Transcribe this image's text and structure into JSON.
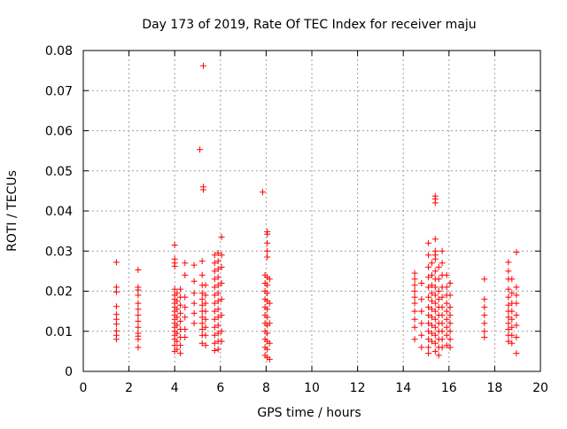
{
  "chart_data": {
    "type": "scatter",
    "title": "Day 173 of 2019, Rate Of TEC Index for receiver maju",
    "xlabel": "GPS time / hours",
    "ylabel": "ROTI / TECUs",
    "xlim": [
      0,
      20
    ],
    "ylim": [
      0,
      0.08
    ],
    "xticks": [
      0,
      2,
      4,
      6,
      8,
      10,
      12,
      14,
      16,
      18,
      20
    ],
    "xtick_labels": [
      "0",
      "2",
      "4",
      "6",
      "8",
      "10",
      "12",
      "14",
      "16",
      "18",
      "20"
    ],
    "yticks": [
      0,
      0.01,
      0.02,
      0.03,
      0.04,
      0.05,
      0.06,
      0.07,
      0.08
    ],
    "ytick_labels": [
      "0",
      "0.01",
      "0.02",
      "0.03",
      "0.04",
      "0.05",
      "0.06",
      "0.07",
      "0.08"
    ],
    "grid": true,
    "marker": "+",
    "color": "#ff0000",
    "series": [
      {
        "name": "ROTI",
        "points": [
          [
            1.45,
            0.0272
          ],
          [
            1.45,
            0.021
          ],
          [
            1.45,
            0.0198
          ],
          [
            1.45,
            0.0162
          ],
          [
            1.45,
            0.0142
          ],
          [
            1.45,
            0.013
          ],
          [
            1.45,
            0.0118
          ],
          [
            1.45,
            0.0101
          ],
          [
            1.45,
            0.009
          ],
          [
            1.45,
            0.008
          ],
          [
            2.4,
            0.0253
          ],
          [
            2.4,
            0.021
          ],
          [
            2.4,
            0.0203
          ],
          [
            2.4,
            0.019
          ],
          [
            2.4,
            0.017
          ],
          [
            2.4,
            0.0155
          ],
          [
            2.4,
            0.014
          ],
          [
            2.4,
            0.0125
          ],
          [
            2.4,
            0.011
          ],
          [
            2.4,
            0.0095
          ],
          [
            2.4,
            0.0088
          ],
          [
            2.4,
            0.008
          ],
          [
            2.4,
            0.006
          ],
          [
            4.0,
            0.0315
          ],
          [
            4.0,
            0.028
          ],
          [
            4.0,
            0.027
          ],
          [
            4.0,
            0.0262
          ],
          [
            4.0,
            0.0205
          ],
          [
            4.0,
            0.019
          ],
          [
            4.0,
            0.018
          ],
          [
            4.0,
            0.017
          ],
          [
            4.0,
            0.016
          ],
          [
            4.0,
            0.015
          ],
          [
            4.0,
            0.014
          ],
          [
            4.0,
            0.013
          ],
          [
            4.0,
            0.012
          ],
          [
            4.0,
            0.011
          ],
          [
            4.0,
            0.01
          ],
          [
            4.0,
            0.009
          ],
          [
            4.0,
            0.008
          ],
          [
            4.0,
            0.0065
          ],
          [
            4.0,
            0.005
          ],
          [
            4.1,
            0.0195
          ],
          [
            4.1,
            0.0175
          ],
          [
            4.1,
            0.0155
          ],
          [
            4.1,
            0.0135
          ],
          [
            4.1,
            0.0115
          ],
          [
            4.1,
            0.0095
          ],
          [
            4.1,
            0.0075
          ],
          [
            4.1,
            0.0055
          ],
          [
            4.25,
            0.0205
          ],
          [
            4.25,
            0.0185
          ],
          [
            4.25,
            0.0165
          ],
          [
            4.25,
            0.0145
          ],
          [
            4.25,
            0.0125
          ],
          [
            4.25,
            0.0105
          ],
          [
            4.25,
            0.0085
          ],
          [
            4.25,
            0.0065
          ],
          [
            4.25,
            0.0045
          ],
          [
            4.45,
            0.027
          ],
          [
            4.45,
            0.024
          ],
          [
            4.45,
            0.0185
          ],
          [
            4.45,
            0.016
          ],
          [
            4.45,
            0.0135
          ],
          [
            4.45,
            0.0105
          ],
          [
            4.45,
            0.0085
          ],
          [
            4.85,
            0.0265
          ],
          [
            4.85,
            0.0225
          ],
          [
            4.85,
            0.0195
          ],
          [
            4.85,
            0.017
          ],
          [
            4.85,
            0.0145
          ],
          [
            4.85,
            0.012
          ],
          [
            5.1,
            0.0553
          ],
          [
            5.25,
            0.0762
          ],
          [
            5.25,
            0.046
          ],
          [
            5.25,
            0.0453
          ],
          [
            5.2,
            0.0275
          ],
          [
            5.2,
            0.024
          ],
          [
            5.2,
            0.0215
          ],
          [
            5.2,
            0.0195
          ],
          [
            5.2,
            0.018
          ],
          [
            5.2,
            0.0165
          ],
          [
            5.2,
            0.015
          ],
          [
            5.2,
            0.0135
          ],
          [
            5.2,
            0.012
          ],
          [
            5.2,
            0.0105
          ],
          [
            5.2,
            0.009
          ],
          [
            5.2,
            0.007
          ],
          [
            5.35,
            0.0215
          ],
          [
            5.35,
            0.019
          ],
          [
            5.35,
            0.017
          ],
          [
            5.35,
            0.015
          ],
          [
            5.35,
            0.013
          ],
          [
            5.35,
            0.011
          ],
          [
            5.35,
            0.009
          ],
          [
            5.35,
            0.0065
          ],
          [
            5.75,
            0.029
          ],
          [
            5.75,
            0.027
          ],
          [
            5.75,
            0.025
          ],
          [
            5.75,
            0.023
          ],
          [
            5.75,
            0.021
          ],
          [
            5.75,
            0.019
          ],
          [
            5.75,
            0.017
          ],
          [
            5.75,
            0.015
          ],
          [
            5.75,
            0.013
          ],
          [
            5.75,
            0.011
          ],
          [
            5.75,
            0.009
          ],
          [
            5.75,
            0.007
          ],
          [
            5.75,
            0.0052
          ],
          [
            5.9,
            0.0295
          ],
          [
            5.9,
            0.0275
          ],
          [
            5.9,
            0.0255
          ],
          [
            5.9,
            0.0235
          ],
          [
            5.9,
            0.0215
          ],
          [
            5.9,
            0.0195
          ],
          [
            5.9,
            0.0175
          ],
          [
            5.9,
            0.0155
          ],
          [
            5.9,
            0.0135
          ],
          [
            5.9,
            0.0115
          ],
          [
            5.9,
            0.0095
          ],
          [
            5.9,
            0.0075
          ],
          [
            5.9,
            0.0055
          ],
          [
            6.05,
            0.0335
          ],
          [
            6.05,
            0.029
          ],
          [
            6.05,
            0.026
          ],
          [
            6.05,
            0.022
          ],
          [
            6.05,
            0.018
          ],
          [
            6.05,
            0.014
          ],
          [
            6.05,
            0.01
          ],
          [
            6.05,
            0.0075
          ],
          [
            7.85,
            0.0447
          ],
          [
            7.95,
            0.024
          ],
          [
            7.95,
            0.022
          ],
          [
            7.95,
            0.02
          ],
          [
            7.95,
            0.018
          ],
          [
            7.95,
            0.016
          ],
          [
            7.95,
            0.014
          ],
          [
            7.95,
            0.012
          ],
          [
            7.95,
            0.01
          ],
          [
            7.95,
            0.008
          ],
          [
            7.95,
            0.006
          ],
          [
            7.95,
            0.004
          ],
          [
            8.05,
            0.0348
          ],
          [
            8.05,
            0.0342
          ],
          [
            8.05,
            0.032
          ],
          [
            8.05,
            0.03
          ],
          [
            8.05,
            0.0285
          ],
          [
            8.05,
            0.0235
          ],
          [
            8.05,
            0.0215
          ],
          [
            8.05,
            0.0195
          ],
          [
            8.05,
            0.0175
          ],
          [
            8.05,
            0.0155
          ],
          [
            8.05,
            0.0135
          ],
          [
            8.05,
            0.0115
          ],
          [
            8.05,
            0.0095
          ],
          [
            8.05,
            0.0075
          ],
          [
            8.05,
            0.0055
          ],
          [
            8.05,
            0.0035
          ],
          [
            8.15,
            0.023
          ],
          [
            8.15,
            0.017
          ],
          [
            8.15,
            0.012
          ],
          [
            8.15,
            0.007
          ],
          [
            8.15,
            0.003
          ],
          [
            14.5,
            0.0245
          ],
          [
            14.5,
            0.023
          ],
          [
            14.5,
            0.0215
          ],
          [
            14.5,
            0.02
          ],
          [
            14.5,
            0.0185
          ],
          [
            14.5,
            0.017
          ],
          [
            14.5,
            0.015
          ],
          [
            14.5,
            0.013
          ],
          [
            14.5,
            0.011
          ],
          [
            14.5,
            0.008
          ],
          [
            14.8,
            0.022
          ],
          [
            14.8,
            0.018
          ],
          [
            14.8,
            0.015
          ],
          [
            14.8,
            0.012
          ],
          [
            14.8,
            0.009
          ],
          [
            14.8,
            0.006
          ],
          [
            15.1,
            0.032
          ],
          [
            15.1,
            0.029
          ],
          [
            15.1,
            0.026
          ],
          [
            15.1,
            0.0235
          ],
          [
            15.1,
            0.021
          ],
          [
            15.1,
            0.0185
          ],
          [
            15.1,
            0.016
          ],
          [
            15.1,
            0.014
          ],
          [
            15.1,
            0.012
          ],
          [
            15.1,
            0.01
          ],
          [
            15.1,
            0.008
          ],
          [
            15.1,
            0.006
          ],
          [
            15.1,
            0.0045
          ],
          [
            15.25,
            0.027
          ],
          [
            15.25,
            0.024
          ],
          [
            15.25,
            0.0215
          ],
          [
            15.25,
            0.0195
          ],
          [
            15.25,
            0.0175
          ],
          [
            15.25,
            0.0155
          ],
          [
            15.25,
            0.0135
          ],
          [
            15.25,
            0.0115
          ],
          [
            15.25,
            0.0095
          ],
          [
            15.25,
            0.0075
          ],
          [
            15.4,
            0.0437
          ],
          [
            15.4,
            0.043
          ],
          [
            15.4,
            0.042
          ],
          [
            15.4,
            0.033
          ],
          [
            15.4,
            0.03
          ],
          [
            15.4,
            0.029
          ],
          [
            15.4,
            0.028
          ],
          [
            15.4,
            0.025
          ],
          [
            15.4,
            0.023
          ],
          [
            15.4,
            0.021
          ],
          [
            15.4,
            0.019
          ],
          [
            15.4,
            0.017
          ],
          [
            15.4,
            0.015
          ],
          [
            15.4,
            0.013
          ],
          [
            15.4,
            0.011
          ],
          [
            15.4,
            0.009
          ],
          [
            15.4,
            0.007
          ],
          [
            15.4,
            0.005
          ],
          [
            15.55,
            0.026
          ],
          [
            15.55,
            0.023
          ],
          [
            15.55,
            0.02
          ],
          [
            15.55,
            0.018
          ],
          [
            15.55,
            0.016
          ],
          [
            15.55,
            0.014
          ],
          [
            15.55,
            0.012
          ],
          [
            15.55,
            0.01
          ],
          [
            15.55,
            0.008
          ],
          [
            15.55,
            0.006
          ],
          [
            15.55,
            0.004
          ],
          [
            15.7,
            0.03
          ],
          [
            15.7,
            0.027
          ],
          [
            15.7,
            0.024
          ],
          [
            15.7,
            0.021
          ],
          [
            15.7,
            0.0185
          ],
          [
            15.7,
            0.016
          ],
          [
            15.7,
            0.014
          ],
          [
            15.7,
            0.012
          ],
          [
            15.7,
            0.01
          ],
          [
            15.7,
            0.008
          ],
          [
            15.7,
            0.006
          ],
          [
            15.9,
            0.024
          ],
          [
            15.9,
            0.021
          ],
          [
            15.9,
            0.019
          ],
          [
            15.9,
            0.017
          ],
          [
            15.9,
            0.015
          ],
          [
            15.9,
            0.013
          ],
          [
            15.9,
            0.011
          ],
          [
            15.9,
            0.009
          ],
          [
            15.9,
            0.0065
          ],
          [
            16.05,
            0.022
          ],
          [
            16.05,
            0.019
          ],
          [
            16.05,
            0.016
          ],
          [
            16.05,
            0.014
          ],
          [
            16.05,
            0.012
          ],
          [
            16.05,
            0.01
          ],
          [
            16.05,
            0.008
          ],
          [
            16.05,
            0.006
          ],
          [
            17.55,
            0.023
          ],
          [
            17.55,
            0.018
          ],
          [
            17.55,
            0.016
          ],
          [
            17.55,
            0.014
          ],
          [
            17.55,
            0.012
          ],
          [
            17.55,
            0.01
          ],
          [
            17.55,
            0.0085
          ],
          [
            18.6,
            0.0272
          ],
          [
            18.6,
            0.025
          ],
          [
            18.6,
            0.023
          ],
          [
            18.6,
            0.0205
          ],
          [
            18.6,
            0.0185
          ],
          [
            18.6,
            0.0165
          ],
          [
            18.6,
            0.015
          ],
          [
            18.6,
            0.0135
          ],
          [
            18.6,
            0.012
          ],
          [
            18.6,
            0.0105
          ],
          [
            18.6,
            0.009
          ],
          [
            18.6,
            0.0075
          ],
          [
            18.75,
            0.023
          ],
          [
            18.75,
            0.0195
          ],
          [
            18.75,
            0.017
          ],
          [
            18.75,
            0.015
          ],
          [
            18.75,
            0.013
          ],
          [
            18.75,
            0.011
          ],
          [
            18.75,
            0.009
          ],
          [
            18.75,
            0.007
          ],
          [
            18.95,
            0.0297
          ],
          [
            18.95,
            0.021
          ],
          [
            18.95,
            0.019
          ],
          [
            18.95,
            0.017
          ],
          [
            18.95,
            0.014
          ],
          [
            18.95,
            0.0115
          ],
          [
            18.95,
            0.0085
          ],
          [
            18.95,
            0.0045
          ]
        ]
      }
    ]
  }
}
